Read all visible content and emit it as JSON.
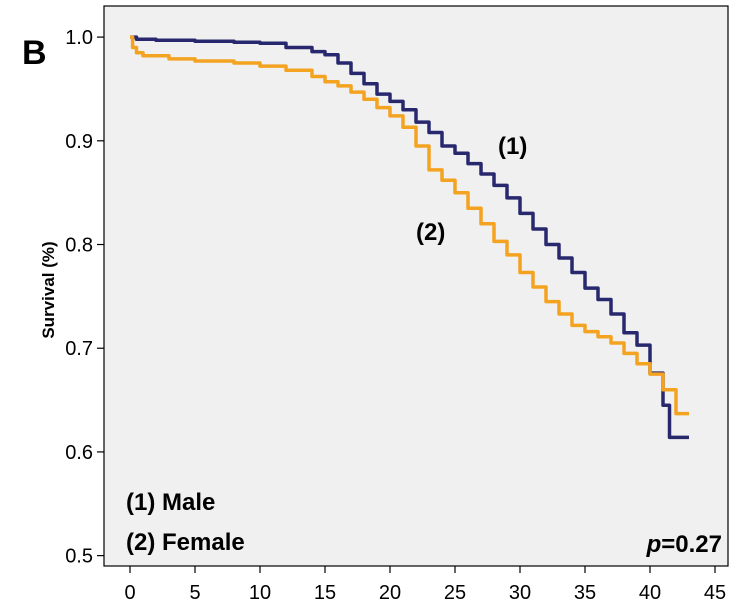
{
  "chart_data": {
    "type": "line",
    "panel_label": "B",
    "title": "",
    "xlabel": "",
    "ylabel": "Survival (%)",
    "xlim": [
      -2,
      46
    ],
    "ylim": [
      0.49,
      1.03
    ],
    "x_ticks": [
      0,
      5,
      10,
      15,
      20,
      25,
      30,
      35,
      40,
      45
    ],
    "y_ticks": [
      0.5,
      0.6,
      0.7,
      0.8,
      0.9,
      1.0
    ],
    "y_tick_labels": [
      "0.5",
      "0.6",
      "0.7",
      "0.8",
      "0.9",
      "1.0"
    ],
    "grid": false,
    "background": "#f0f0f0",
    "series": [
      {
        "label_on_plot": "(1)",
        "color": "#28286e",
        "x": [
          0,
          0.5,
          2,
          5,
          8,
          10,
          12,
          14,
          15,
          16,
          17,
          18,
          19,
          20,
          21,
          22,
          23,
          24,
          25,
          26,
          27,
          28,
          29,
          30,
          31,
          32,
          33,
          34,
          35,
          36,
          37,
          38,
          39,
          40,
          41,
          41.5,
          42,
          43
        ],
        "y": [
          1.0,
          0.998,
          0.997,
          0.996,
          0.995,
          0.994,
          0.99,
          0.986,
          0.983,
          0.975,
          0.965,
          0.955,
          0.945,
          0.938,
          0.93,
          0.918,
          0.908,
          0.895,
          0.888,
          0.878,
          0.868,
          0.857,
          0.845,
          0.83,
          0.815,
          0.8,
          0.787,
          0.773,
          0.758,
          0.747,
          0.733,
          0.715,
          0.703,
          0.676,
          0.645,
          0.614,
          0.614,
          0.614
        ]
      },
      {
        "label_on_plot": "(2)",
        "color": "#f4a321",
        "x": [
          0,
          0.2,
          0.5,
          1,
          3,
          5,
          8,
          10,
          12,
          14,
          15,
          16,
          17,
          18,
          19,
          20,
          21,
          22,
          23,
          24,
          25,
          26,
          27,
          28,
          29,
          30,
          31,
          32,
          33,
          34,
          35,
          36,
          37,
          38,
          39,
          40,
          41,
          42,
          43
        ],
        "y": [
          1.0,
          0.99,
          0.985,
          0.982,
          0.979,
          0.977,
          0.975,
          0.972,
          0.968,
          0.962,
          0.957,
          0.953,
          0.947,
          0.94,
          0.932,
          0.924,
          0.913,
          0.895,
          0.872,
          0.862,
          0.85,
          0.835,
          0.82,
          0.803,
          0.79,
          0.773,
          0.759,
          0.745,
          0.733,
          0.722,
          0.716,
          0.711,
          0.705,
          0.695,
          0.685,
          0.675,
          0.66,
          0.637,
          0.637
        ]
      }
    ],
    "legend_lines": [
      "(1) Male",
      "(2) Female"
    ],
    "legend_placement": "bottom-left",
    "annotation": {
      "p_symbol": "p",
      "p_value_text": "=0.27",
      "placement": "bottom-right"
    }
  }
}
